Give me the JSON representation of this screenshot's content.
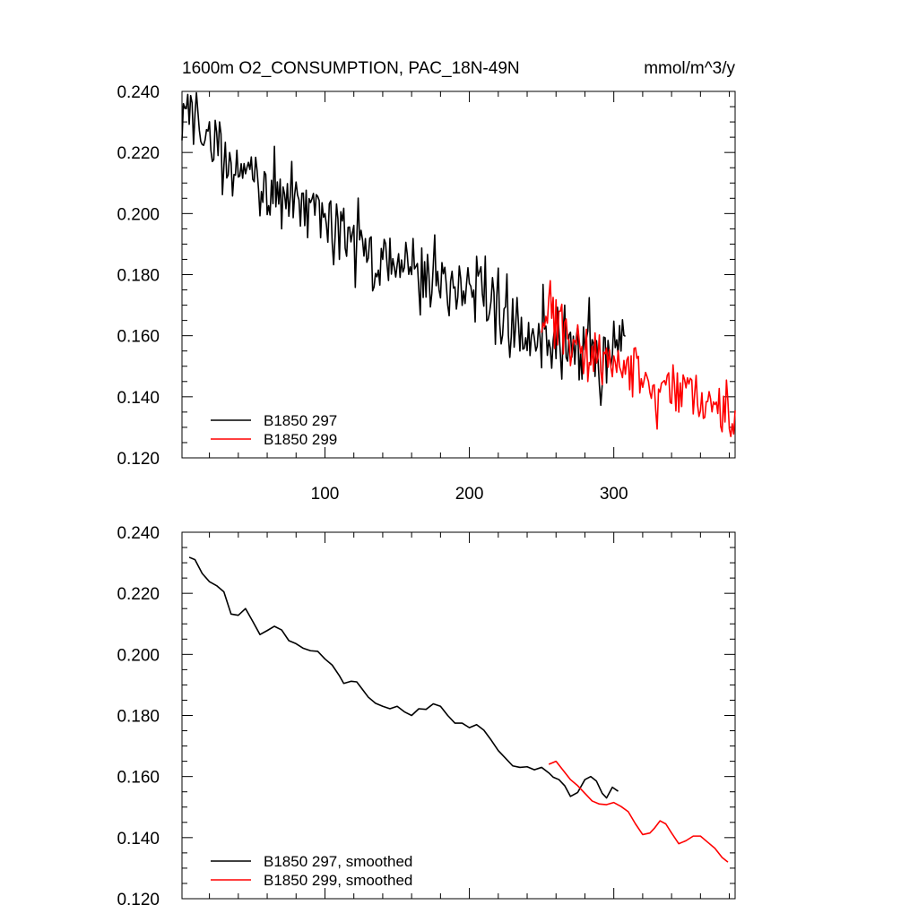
{
  "chart_data": [
    {
      "type": "line",
      "title": "1600m O2_CONSUMPTION, PAC_18N-49N",
      "units": "mmol/m^3/y",
      "xlabel": "",
      "ylabel": "",
      "xlim": [
        1,
        384
      ],
      "ylim": [
        0.12,
        0.24
      ],
      "yticks": [
        0.12,
        0.14,
        0.16,
        0.18,
        0.2,
        0.22,
        0.24
      ],
      "yticklabels": [
        "0.120",
        "0.140",
        "0.160",
        "0.180",
        "0.200",
        "0.220",
        "0.240"
      ],
      "xticks": [
        100,
        200,
        300
      ],
      "xticklabels": [
        "100",
        "200",
        "300"
      ],
      "legend_position": "bottom-left",
      "series": [
        {
          "name": "B1850 297",
          "color": "#000000",
          "x_start": 1,
          "x_end": 308,
          "knots": [
            [
              1,
              0.233
            ],
            [
              10,
              0.23
            ],
            [
              20,
              0.224
            ],
            [
              30,
              0.218
            ],
            [
              40,
              0.216
            ],
            [
              50,
              0.214
            ],
            [
              60,
              0.209
            ],
            [
              70,
              0.208
            ],
            [
              80,
              0.205
            ],
            [
              90,
              0.202
            ],
            [
              100,
              0.201
            ],
            [
              110,
              0.194
            ],
            [
              120,
              0.19
            ],
            [
              130,
              0.187
            ],
            [
              140,
              0.185
            ],
            [
              150,
              0.183
            ],
            [
              160,
              0.183
            ],
            [
              170,
              0.18
            ],
            [
              180,
              0.18
            ],
            [
              190,
              0.176
            ],
            [
              200,
              0.174
            ],
            [
              210,
              0.173
            ],
            [
              220,
              0.17
            ],
            [
              230,
              0.163
            ],
            [
              240,
              0.163
            ],
            [
              250,
              0.162
            ],
            [
              260,
              0.16
            ],
            [
              265,
              0.157
            ],
            [
              270,
              0.154
            ],
            [
              275,
              0.156
            ],
            [
              280,
              0.158
            ],
            [
              285,
              0.156
            ],
            [
              290,
              0.15
            ],
            [
              295,
              0.152
            ],
            [
              300,
              0.155
            ],
            [
              308,
              0.156
            ]
          ],
          "noise": 0.006,
          "spikes": [
            [
              2,
              0.236
            ],
            [
              5,
              0.239
            ],
            [
              27,
              0.23
            ],
            [
              65,
              0.222
            ],
            [
              70,
              0.195
            ],
            [
              110,
              0.185
            ],
            [
              176,
              0.193
            ],
            [
              185,
              0.17
            ],
            [
              235,
              0.155
            ],
            [
              290,
              0.144
            ]
          ],
          "seed": 297
        },
        {
          "name": "B1850 299",
          "color": "#ff0000",
          "x_start": 250,
          "x_end": 384,
          "knots": [
            [
              250,
              0.163
            ],
            [
              255,
              0.165
            ],
            [
              260,
              0.164
            ],
            [
              265,
              0.162
            ],
            [
              270,
              0.159
            ],
            [
              280,
              0.156
            ],
            [
              290,
              0.153
            ],
            [
              300,
              0.152
            ],
            [
              310,
              0.15
            ],
            [
              320,
              0.145
            ],
            [
              330,
              0.141
            ],
            [
              340,
              0.142
            ],
            [
              350,
              0.143
            ],
            [
              360,
              0.138
            ],
            [
              370,
              0.136
            ],
            [
              380,
              0.133
            ],
            [
              384,
              0.133
            ]
          ],
          "noise": 0.005,
          "spikes": [
            [
              256,
              0.178
            ],
            [
              262,
              0.168
            ],
            [
              282,
              0.145
            ],
            [
              357,
              0.147
            ],
            [
              381,
              0.127
            ]
          ],
          "seed": 299
        }
      ]
    },
    {
      "type": "line",
      "title": "",
      "xlabel": "",
      "ylabel": "",
      "xlim": [
        1,
        384
      ],
      "ylim": [
        0.12,
        0.24
      ],
      "yticks": [
        0.12,
        0.14,
        0.16,
        0.18,
        0.2,
        0.22,
        0.24
      ],
      "yticklabels": [
        "0.120",
        "0.140",
        "0.160",
        "0.180",
        "0.200",
        "0.220",
        "0.240"
      ],
      "xticks": [
        100,
        200,
        300
      ],
      "xticklabels": [],
      "legend_position": "bottom-left",
      "series": [
        {
          "name": "B1850 297, smoothed",
          "color": "#000000",
          "x_start": 6,
          "x_end": 303,
          "knots": [
            [
              6,
              0.2318
            ],
            [
              10,
              0.231
            ],
            [
              15,
              0.2265
            ],
            [
              20,
              0.2238
            ],
            [
              25,
              0.2225
            ],
            [
              30,
              0.2205
            ],
            [
              35,
              0.2132
            ],
            [
              40,
              0.2128
            ],
            [
              45,
              0.215
            ],
            [
              50,
              0.2108
            ],
            [
              55,
              0.2065
            ],
            [
              60,
              0.2078
            ],
            [
              65,
              0.2092
            ],
            [
              70,
              0.208
            ],
            [
              75,
              0.2045
            ],
            [
              80,
              0.2035
            ],
            [
              85,
              0.202
            ],
            [
              90,
              0.2012
            ],
            [
              95,
              0.201
            ],
            [
              100,
              0.1985
            ],
            [
              105,
              0.1965
            ],
            [
              110,
              0.193
            ],
            [
              113,
              0.1905
            ],
            [
              118,
              0.1912
            ],
            [
              122,
              0.191
            ],
            [
              126,
              0.1885
            ],
            [
              130,
              0.186
            ],
            [
              135,
              0.184
            ],
            [
              140,
              0.183
            ],
            [
              145,
              0.1822
            ],
            [
              150,
              0.183
            ],
            [
              155,
              0.1812
            ],
            [
              160,
              0.18
            ],
            [
              165,
              0.1822
            ],
            [
              170,
              0.182
            ],
            [
              175,
              0.1838
            ],
            [
              180,
              0.183
            ],
            [
              185,
              0.18
            ],
            [
              190,
              0.1775
            ],
            [
              195,
              0.1775
            ],
            [
              200,
              0.176
            ],
            [
              205,
              0.177
            ],
            [
              210,
              0.1752
            ],
            [
              215,
              0.172
            ],
            [
              220,
              0.1685
            ],
            [
              225,
              0.166
            ],
            [
              230,
              0.1635
            ],
            [
              235,
              0.163
            ],
            [
              240,
              0.1632
            ],
            [
              245,
              0.1622
            ],
            [
              250,
              0.163
            ],
            [
              255,
              0.1612
            ],
            [
              258,
              0.1598
            ],
            [
              262,
              0.159
            ],
            [
              266,
              0.157
            ],
            [
              270,
              0.1535
            ],
            [
              275,
              0.1548
            ],
            [
              280,
              0.159
            ],
            [
              284,
              0.16
            ],
            [
              288,
              0.1585
            ],
            [
              292,
              0.1545
            ],
            [
              295,
              0.153
            ],
            [
              299,
              0.1565
            ],
            [
              303,
              0.1552
            ]
          ]
        },
        {
          "name": "B1850 299, smoothed",
          "color": "#ff0000",
          "x_start": 255,
          "x_end": 379,
          "knots": [
            [
              255,
              0.164
            ],
            [
              260,
              0.165
            ],
            [
              265,
              0.162
            ],
            [
              270,
              0.159
            ],
            [
              275,
              0.157
            ],
            [
              280,
              0.1545
            ],
            [
              285,
              0.152
            ],
            [
              290,
              0.151
            ],
            [
              295,
              0.1508
            ],
            [
              300,
              0.1515
            ],
            [
              305,
              0.1502
            ],
            [
              310,
              0.1485
            ],
            [
              315,
              0.1445
            ],
            [
              320,
              0.141
            ],
            [
              325,
              0.1415
            ],
            [
              328,
              0.143
            ],
            [
              332,
              0.1455
            ],
            [
              336,
              0.1445
            ],
            [
              340,
              0.1415
            ],
            [
              345,
              0.138
            ],
            [
              350,
              0.139
            ],
            [
              355,
              0.1405
            ],
            [
              360,
              0.1405
            ],
            [
              365,
              0.1385
            ],
            [
              370,
              0.1365
            ],
            [
              375,
              0.1335
            ],
            [
              379,
              0.132
            ]
          ]
        }
      ]
    }
  ]
}
